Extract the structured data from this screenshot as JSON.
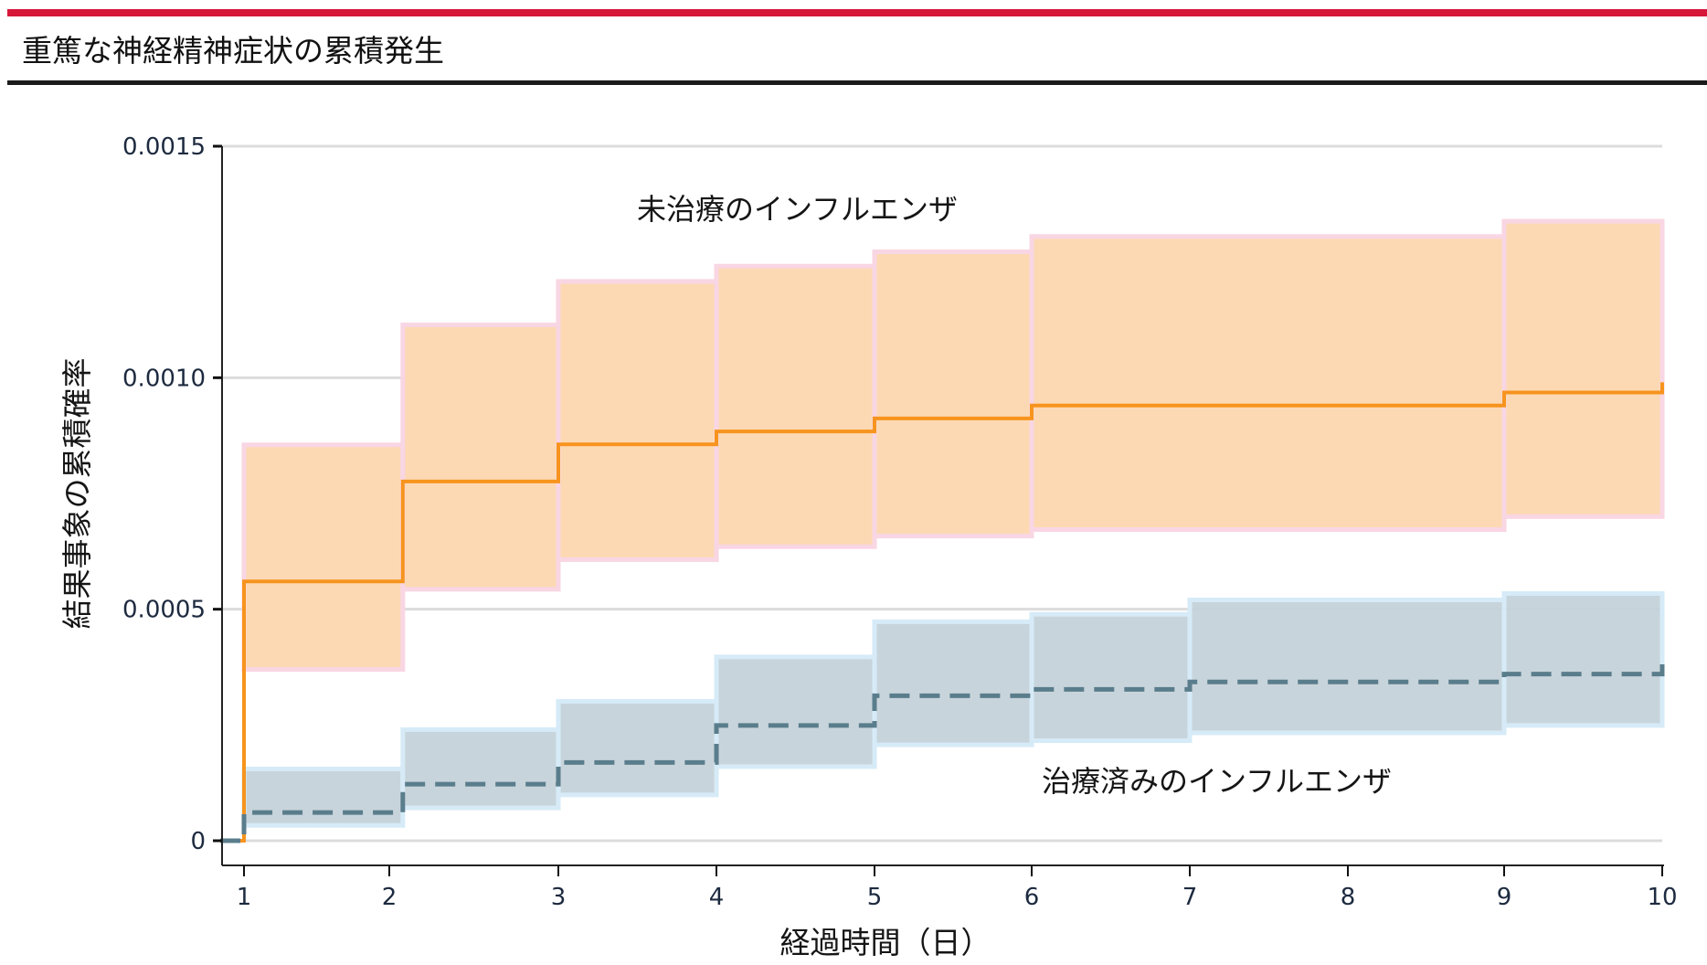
{
  "header": {
    "title": "重篤な神経精神症状の累積発生",
    "accent_color": "#d7173a"
  },
  "chart_data": {
    "type": "line",
    "subtype": "step (Kaplan-Meier cumulative incidence) with confidence bands",
    "title": "重篤な神経精神症状の累積発生",
    "xlabel": "経過時間（日）",
    "ylabel": "結果事象の累積確率",
    "xlim": [
      0.85,
      10
    ],
    "ylim": [
      0,
      0.0015
    ],
    "x_ticks": [
      1,
      2,
      3,
      4,
      5,
      6,
      7,
      8,
      9,
      10
    ],
    "x_tick_labels": [
      "1",
      "2",
      "3",
      "4",
      "5",
      "6",
      "7",
      "8",
      "9",
      "10"
    ],
    "y_ticks": [
      0,
      0.0005,
      0.001,
      0.0015
    ],
    "y_tick_labels": [
      "0",
      "0.0005",
      "0.0010",
      "0.0015"
    ],
    "grid": "horizontal",
    "legend": "inline annotations",
    "series": [
      {
        "name": "未治療のインフルエンザ",
        "color": "#f7941d",
        "band_color": "#fcd9b3",
        "band_edge_color": "#f9d6e3",
        "line_style": "solid",
        "label_position": {
          "x": 4.5,
          "y": 0.00138
        },
        "steps": [
          {
            "x_start": 0.86,
            "x_end": 1.0,
            "estimate": 0.0,
            "lower": 0.0,
            "upper": 0.0
          },
          {
            "x_start": 1.0,
            "x_end": 2.08,
            "estimate": 0.00056,
            "lower": 0.00037,
            "upper": 0.000855
          },
          {
            "x_start": 2.08,
            "x_end": 3.0,
            "estimate": 0.000776,
            "lower": 0.000543,
            "upper": 0.001114
          },
          {
            "x_start": 3.0,
            "x_end": 4.0,
            "estimate": 0.000856,
            "lower": 0.000607,
            "upper": 0.001208
          },
          {
            "x_start": 4.0,
            "x_end": 5.0,
            "estimate": 0.000884,
            "lower": 0.000635,
            "upper": 0.001241
          },
          {
            "x_start": 5.0,
            "x_end": 6.0,
            "estimate": 0.000912,
            "lower": 0.000658,
            "upper": 0.001272
          },
          {
            "x_start": 6.0,
            "x_end": 9.0,
            "estimate": 0.00094,
            "lower": 0.000672,
            "upper": 0.001305
          },
          {
            "x_start": 9.0,
            "x_end": 10.0,
            "estimate": 0.000968,
            "lower": 0.0007,
            "upper": 0.001338
          }
        ],
        "end_value": 0.00099
      },
      {
        "name": "治療済みのインフルエンザ",
        "color": "#5a7d8c",
        "band_color": "#c3d0d8",
        "band_edge_color": "#d6ebf7",
        "line_style": "dashed",
        "label_position": {
          "x": 6.1,
          "y": 0.000135
        },
        "steps": [
          {
            "x_start": 0.86,
            "x_end": 1.0,
            "estimate": 0.0,
            "lower": 0.0,
            "upper": 0.0
          },
          {
            "x_start": 1.0,
            "x_end": 2.08,
            "estimate": 6.1e-05,
            "lower": 3.3e-05,
            "upper": 0.000155
          },
          {
            "x_start": 2.08,
            "x_end": 3.0,
            "estimate": 0.000122,
            "lower": 7.1e-05,
            "upper": 0.00024
          },
          {
            "x_start": 3.0,
            "x_end": 4.0,
            "estimate": 0.000169,
            "lower": 9.9e-05,
            "upper": 0.000301
          },
          {
            "x_start": 4.0,
            "x_end": 5.0,
            "estimate": 0.000249,
            "lower": 0.00016,
            "upper": 0.000397
          },
          {
            "x_start": 5.0,
            "x_end": 6.0,
            "estimate": 0.000313,
            "lower": 0.000207,
            "upper": 0.000473
          },
          {
            "x_start": 6.0,
            "x_end": 7.0,
            "estimate": 0.000327,
            "lower": 0.000216,
            "upper": 0.000489
          },
          {
            "x_start": 7.0,
            "x_end": 9.0,
            "estimate": 0.000343,
            "lower": 0.000233,
            "upper": 0.00052
          },
          {
            "x_start": 9.0,
            "x_end": 10.0,
            "estimate": 0.00036,
            "lower": 0.000249,
            "upper": 0.000534
          }
        ],
        "end_value": 0.0004
      }
    ]
  }
}
